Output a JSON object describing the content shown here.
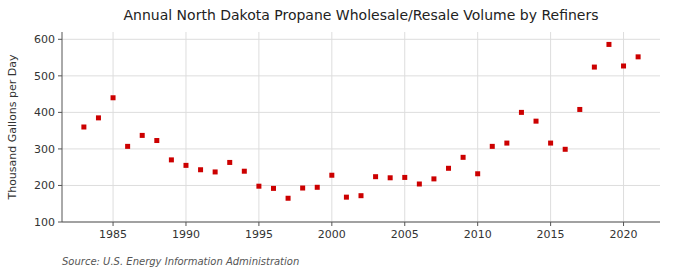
{
  "chart_data": {
    "type": "scatter",
    "title": "Annual North Dakota Propane Wholesale/Resale Volume by Refiners",
    "y_label": "Thousand Gallons per Day",
    "annotations": [
      "Source: U.S. Energy Information Administration"
    ],
    "x": [
      1983,
      1984,
      1985,
      1986,
      1987,
      1988,
      1989,
      1990,
      1991,
      1992,
      1993,
      1994,
      1995,
      1996,
      1997,
      1998,
      1999,
      2000,
      2001,
      2002,
      2003,
      2004,
      2005,
      2006,
      2007,
      2008,
      2009,
      2010,
      2011,
      2012,
      2013,
      2014,
      2015,
      2016,
      2017,
      2018,
      2019,
      2020,
      2021
    ],
    "values": [
      360,
      385,
      440,
      307,
      337,
      323,
      270,
      255,
      243,
      237,
      263,
      239,
      198,
      192,
      165,
      193,
      195,
      228,
      168,
      172,
      224,
      221,
      222,
      204,
      218,
      247,
      277,
      232,
      307,
      316,
      400,
      376,
      316,
      299,
      408,
      524,
      586,
      527,
      552
    ],
    "color": "#cc0000",
    "marker": "square",
    "xlim": [
      1981.5,
      2022.5
    ],
    "xticks": [
      1985,
      1990,
      1995,
      2000,
      2005,
      2010,
      2015,
      2020
    ],
    "ylim": [
      100,
      620
    ],
    "yticks": [
      100,
      200,
      300,
      400,
      500,
      600
    ],
    "grid": true
  }
}
